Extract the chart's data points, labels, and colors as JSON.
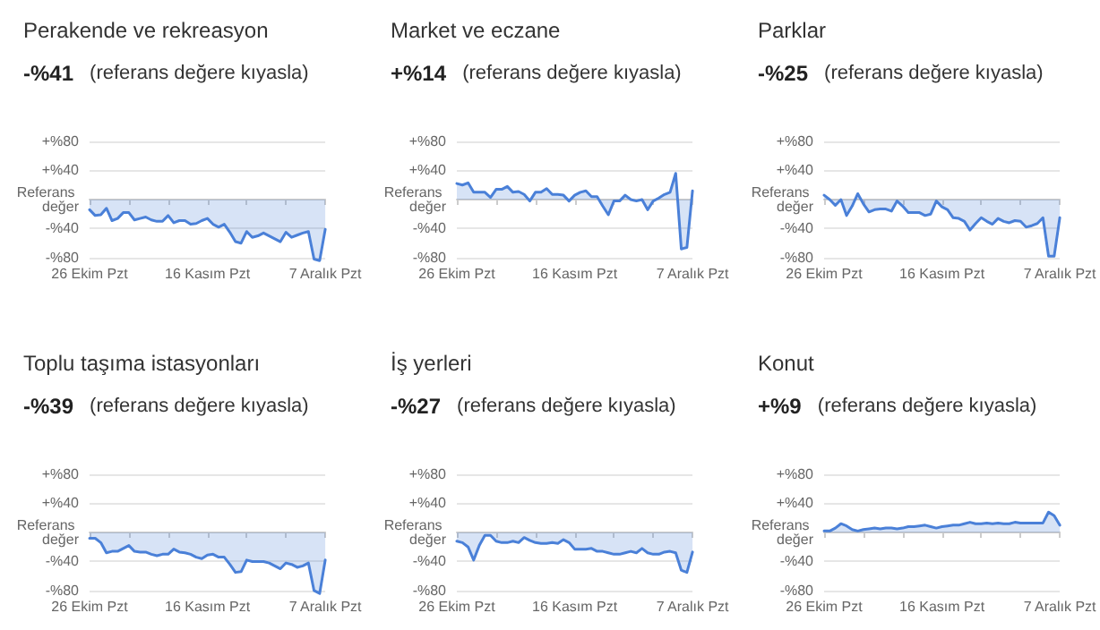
{
  "chart_data": [
    {
      "type": "area",
      "title": "Perakende ve rekreasyon",
      "subtitle": "-%41 (referans değere kıyasla)",
      "categories": [
        "26 Ekim Pzt",
        null,
        null,
        null,
        null,
        null,
        null,
        null,
        null,
        null,
        null,
        null,
        null,
        null,
        null,
        null,
        null,
        null,
        null,
        null,
        null,
        "16 Kasım Pzt",
        null,
        null,
        null,
        null,
        null,
        null,
        null,
        null,
        null,
        null,
        null,
        null,
        null,
        null,
        null,
        null,
        null,
        null,
        null,
        null,
        "7 Aralık Pzt"
      ],
      "series": [
        {
          "color": "#4a80d8",
          "values": [
            -14,
            -22,
            -21,
            -12,
            -29,
            -26,
            -18,
            -18,
            -28,
            -26,
            -24,
            -28,
            -30,
            -30,
            -22,
            -32,
            -29,
            -29,
            -34,
            -33,
            -29,
            -26,
            -34,
            -38,
            -34,
            -45,
            -58,
            -60,
            -44,
            -52,
            -50,
            -46,
            -50,
            -54,
            -58,
            -45,
            -52,
            -49,
            -46,
            -44,
            -82,
            -84,
            -41
          ]
        }
      ],
      "ylim": [
        -85,
        80
      ],
      "yticks": [
        {
          "value": 80,
          "label": "+%80"
        },
        {
          "value": 40,
          "label": "+%40"
        },
        {
          "value": 0,
          "label": "Referans değer"
        },
        {
          "value": -40,
          "label": "-%40"
        },
        {
          "value": -80,
          "label": "-%80"
        }
      ],
      "grid": "y"
    },
    {
      "type": "area",
      "title": "Market ve eczane",
      "subtitle": "+%14 (referans değere kıyasla)",
      "categories": [
        "26 Ekim Pzt",
        null,
        null,
        null,
        null,
        null,
        null,
        null,
        null,
        null,
        null,
        null,
        null,
        null,
        null,
        null,
        null,
        null,
        null,
        null,
        null,
        "16 Kasım Pzt",
        null,
        null,
        null,
        null,
        null,
        null,
        null,
        null,
        null,
        null,
        null,
        null,
        null,
        null,
        null,
        null,
        null,
        null,
        null,
        null,
        "7 Aralık Pzt"
      ],
      "series": [
        {
          "color": "#4a80d8",
          "values": [
            22,
            20,
            23,
            10,
            10,
            10,
            3,
            14,
            14,
            18,
            10,
            11,
            7,
            -2,
            10,
            10,
            15,
            7,
            7,
            6,
            -2,
            6,
            10,
            12,
            4,
            4,
            -9,
            -21,
            -2,
            -2,
            6,
            0,
            -2,
            0,
            -14,
            -2,
            2,
            7,
            10,
            36,
            -68,
            -66,
            12
          ]
        }
      ],
      "ylim": [
        -85,
        80
      ],
      "yticks": [
        {
          "value": 80,
          "label": "+%80"
        },
        {
          "value": 40,
          "label": "+%40"
        },
        {
          "value": 0,
          "label": "Referans değer"
        },
        {
          "value": -40,
          "label": "-%40"
        },
        {
          "value": -80,
          "label": "-%80"
        }
      ],
      "grid": "y"
    },
    {
      "type": "area",
      "title": "Parklar",
      "subtitle": "-%25 (referans değere kıyasla)",
      "categories": [
        "26 Ekim Pzt",
        null,
        null,
        null,
        null,
        null,
        null,
        null,
        null,
        null,
        null,
        null,
        null,
        null,
        null,
        null,
        null,
        null,
        null,
        null,
        null,
        "16 Kasım Pzt",
        null,
        null,
        null,
        null,
        null,
        null,
        null,
        null,
        null,
        null,
        null,
        null,
        null,
        null,
        null,
        null,
        null,
        null,
        null,
        null,
        "7 Aralık Pzt"
      ],
      "series": [
        {
          "color": "#4a80d8",
          "values": [
            6,
            0,
            -8,
            0,
            -22,
            -9,
            8,
            -6,
            -17,
            -14,
            -13,
            -13,
            -16,
            -2,
            -9,
            -18,
            -18,
            -18,
            -22,
            -20,
            -2,
            -10,
            -14,
            -25,
            -26,
            -30,
            -42,
            -33,
            -25,
            -30,
            -34,
            -26,
            -30,
            -32,
            -29,
            -30,
            -38,
            -36,
            -33,
            -25,
            -78,
            -78,
            -25
          ]
        }
      ],
      "ylim": [
        -85,
        80
      ],
      "yticks": [
        {
          "value": 80,
          "label": "+%80"
        },
        {
          "value": 40,
          "label": "+%40"
        },
        {
          "value": 0,
          "label": "Referans değer"
        },
        {
          "value": -40,
          "label": "-%40"
        },
        {
          "value": -80,
          "label": "-%80"
        }
      ],
      "grid": "y"
    },
    {
      "type": "area",
      "title": "Toplu taşıma istasyonları",
      "subtitle": "-%39 (referans değere kıyasla)",
      "categories": [
        "26 Ekim Pzt",
        null,
        null,
        null,
        null,
        null,
        null,
        null,
        null,
        null,
        null,
        null,
        null,
        null,
        null,
        null,
        null,
        null,
        null,
        null,
        null,
        "16 Kasım Pzt",
        null,
        null,
        null,
        null,
        null,
        null,
        null,
        null,
        null,
        null,
        null,
        null,
        null,
        null,
        null,
        null,
        null,
        null,
        null,
        null,
        "7 Aralık Pzt"
      ],
      "series": [
        {
          "color": "#4a80d8",
          "values": [
            -8,
            -8,
            -14,
            -28,
            -26,
            -26,
            -22,
            -18,
            -26,
            -27,
            -27,
            -30,
            -32,
            -30,
            -30,
            -23,
            -27,
            -28,
            -30,
            -34,
            -36,
            -31,
            -30,
            -34,
            -34,
            -44,
            -55,
            -54,
            -38,
            -40,
            -40,
            -40,
            -42,
            -46,
            -50,
            -42,
            -44,
            -48,
            -46,
            -42,
            -80,
            -84,
            -38
          ]
        }
      ],
      "ylim": [
        -85,
        80
      ],
      "yticks": [
        {
          "value": 80,
          "label": "+%80"
        },
        {
          "value": 40,
          "label": "+%40"
        },
        {
          "value": 0,
          "label": "Referans değer"
        },
        {
          "value": -40,
          "label": "-%40"
        },
        {
          "value": -80,
          "label": "-%80"
        }
      ],
      "grid": "y"
    },
    {
      "type": "area",
      "title": "İş yerleri",
      "subtitle": "-%27 (referans değere kıyasla)",
      "categories": [
        "26 Ekim Pzt",
        null,
        null,
        null,
        null,
        null,
        null,
        null,
        null,
        null,
        null,
        null,
        null,
        null,
        null,
        null,
        null,
        null,
        null,
        null,
        null,
        "16 Kasım Pzt",
        null,
        null,
        null,
        null,
        null,
        null,
        null,
        null,
        null,
        null,
        null,
        null,
        null,
        null,
        null,
        null,
        null,
        null,
        null,
        null,
        "7 Aralık Pzt"
      ],
      "series": [
        {
          "color": "#4a80d8",
          "values": [
            -12,
            -14,
            -20,
            -38,
            -18,
            -4,
            -4,
            -12,
            -14,
            -14,
            -12,
            -14,
            -7,
            -11,
            -14,
            -15,
            -15,
            -14,
            -15,
            -10,
            -14,
            -23,
            -23,
            -23,
            -22,
            -26,
            -26,
            -28,
            -30,
            -30,
            -28,
            -26,
            -28,
            -22,
            -28,
            -30,
            -30,
            -27,
            -26,
            -28,
            -52,
            -55,
            -27
          ]
        }
      ],
      "ylim": [
        -85,
        80
      ],
      "yticks": [
        {
          "value": 80,
          "label": "+%80"
        },
        {
          "value": 40,
          "label": "+%40"
        },
        {
          "value": 0,
          "label": "Referans değer"
        },
        {
          "value": -40,
          "label": "-%40"
        },
        {
          "value": -80,
          "label": "-%80"
        }
      ],
      "grid": "y"
    },
    {
      "type": "area",
      "title": "Konut",
      "subtitle": "+%9 (referans değere kıyasla)",
      "categories": [
        "26 Ekim Pzt",
        null,
        null,
        null,
        null,
        null,
        null,
        null,
        null,
        null,
        null,
        null,
        null,
        null,
        null,
        null,
        null,
        null,
        null,
        null,
        null,
        "16 Kasım Pzt",
        null,
        null,
        null,
        null,
        null,
        null,
        null,
        null,
        null,
        null,
        null,
        null,
        null,
        null,
        null,
        null,
        null,
        null,
        null,
        null,
        "7 Aralık Pzt"
      ],
      "series": [
        {
          "color": "#4a80d8",
          "values": [
            2,
            2,
            6,
            12,
            9,
            4,
            2,
            4,
            5,
            6,
            5,
            6,
            6,
            5,
            6,
            8,
            8,
            9,
            10,
            8,
            6,
            8,
            9,
            10,
            10,
            12,
            14,
            12,
            12,
            13,
            12,
            13,
            12,
            12,
            14,
            13,
            13,
            13,
            13,
            13,
            28,
            23,
            10
          ]
        }
      ],
      "ylim": [
        -85,
        80
      ],
      "yticks": [
        {
          "value": 80,
          "label": "+%80"
        },
        {
          "value": 40,
          "label": "+%40"
        },
        {
          "value": 0,
          "label": "Referans değer"
        },
        {
          "value": -40,
          "label": "-%40"
        },
        {
          "value": -80,
          "label": "-%80"
        }
      ],
      "grid": "y"
    }
  ]
}
